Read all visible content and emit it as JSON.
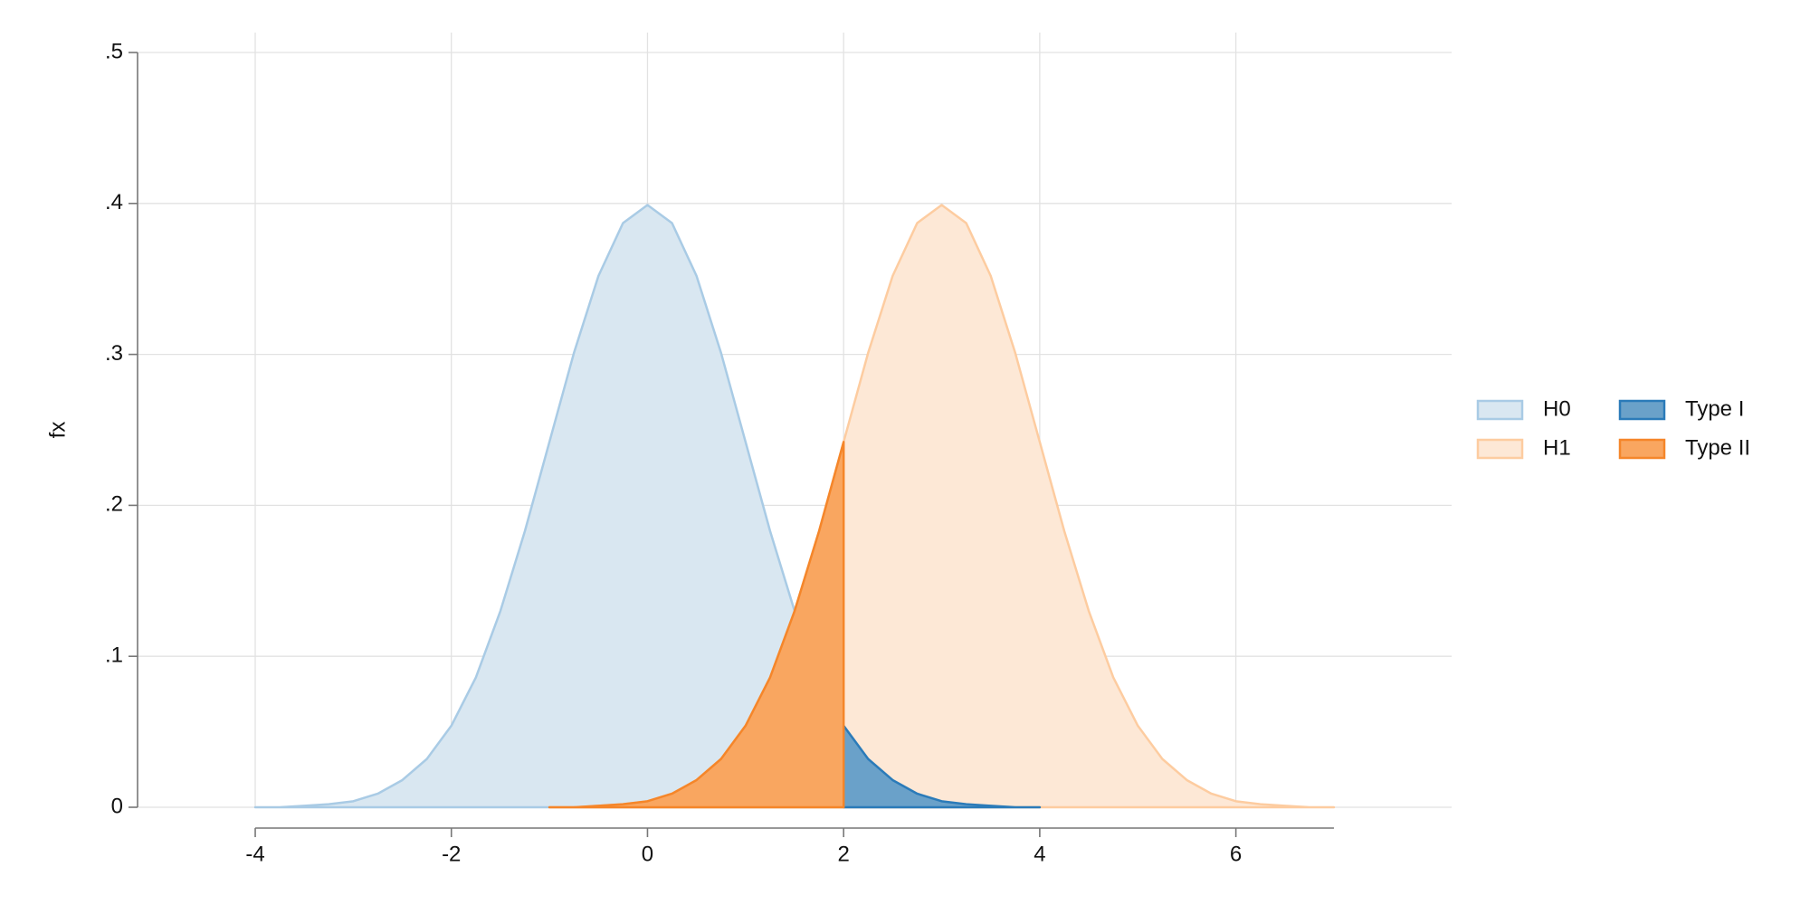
{
  "chart_data": {
    "type": "area",
    "y_label": "fx",
    "x": [
      -4,
      -3.75,
      -3.5,
      -3.25,
      -3,
      -2.75,
      -2.5,
      -2.25,
      -2,
      -1.75,
      -1.5,
      -1.25,
      -1,
      -0.75,
      -0.5,
      -0.25,
      0,
      0.25,
      0.5,
      0.75,
      1,
      1.25,
      1.5,
      1.75,
      2,
      2.25,
      2.5,
      2.75,
      3,
      3.25,
      3.5,
      3.75,
      4,
      4.25,
      4.5,
      4.75,
      5,
      5.25,
      5.5,
      5.75,
      6,
      6.25,
      6.5,
      6.75,
      7
    ],
    "series": [
      {
        "name": "H0",
        "color": "#d9e7f1",
        "edge_color": "#a9cbe5",
        "values": [
          0,
          0,
          0.001,
          0.002,
          0.004,
          0.009,
          0.018,
          0.032,
          0.054,
          0.086,
          0.13,
          0.183,
          0.242,
          0.301,
          0.352,
          0.387,
          0.399,
          0.387,
          0.352,
          0.301,
          0.242,
          0.183,
          0.13,
          0.086,
          0.054,
          0.032,
          0.018,
          0.009,
          0.004,
          0.002,
          0.001,
          0,
          0,
          null,
          null,
          null,
          null,
          null,
          null,
          null,
          null,
          null,
          null,
          null,
          null
        ]
      },
      {
        "name": "H1",
        "color": "#fde8d6",
        "edge_color": "#fdcca0",
        "values": [
          null,
          null,
          null,
          null,
          null,
          null,
          null,
          null,
          null,
          null,
          null,
          null,
          0,
          0,
          0.001,
          0.002,
          0.004,
          0.009,
          0.018,
          0.032,
          0.054,
          0.086,
          0.13,
          0.183,
          0.242,
          0.301,
          0.352,
          0.387,
          0.399,
          0.387,
          0.352,
          0.301,
          0.242,
          0.183,
          0.13,
          0.086,
          0.054,
          0.032,
          0.018,
          0.009,
          0.004,
          0.002,
          0.001,
          0,
          0
        ]
      },
      {
        "name": "Type I",
        "color": "#6aa1c9",
        "edge_color": "#2b7bb9",
        "values": [
          null,
          null,
          null,
          null,
          null,
          null,
          null,
          null,
          null,
          null,
          null,
          null,
          null,
          null,
          null,
          null,
          null,
          null,
          null,
          null,
          null,
          null,
          null,
          null,
          0.054,
          0.032,
          0.018,
          0.009,
          0.004,
          0.002,
          0.001,
          0,
          0,
          null,
          null,
          null,
          null,
          null,
          null,
          null,
          null,
          null,
          null,
          null,
          null
        ]
      },
      {
        "name": "Type II",
        "color": "#f9a660",
        "edge_color": "#f5862a",
        "values": [
          null,
          null,
          null,
          null,
          null,
          null,
          null,
          null,
          null,
          null,
          null,
          null,
          0,
          0,
          0.001,
          0.002,
          0.004,
          0.009,
          0.018,
          0.032,
          0.054,
          0.086,
          0.13,
          0.183,
          0.242,
          null,
          null,
          null,
          null,
          null,
          null,
          null,
          null,
          null,
          null,
          null,
          null,
          null,
          null,
          null,
          null,
          null,
          null,
          null,
          null
        ]
      }
    ],
    "xlim": [
      -5.2,
      8.2
    ],
    "xticks": [
      -4,
      -2,
      0,
      2,
      4,
      6
    ],
    "ylim": [
      0,
      0.5
    ],
    "yticks": [
      0,
      {
        "value": 0.1,
        "label": ".1"
      },
      {
        "value": 0.2,
        "label": ".2"
      },
      {
        "value": 0.3,
        "label": ".3"
      },
      {
        "value": 0.4,
        "label": ".4"
      },
      {
        "value": 0.5,
        "label": ".5"
      }
    ],
    "grid": true,
    "legend": "right",
    "legend_columns": 2
  }
}
